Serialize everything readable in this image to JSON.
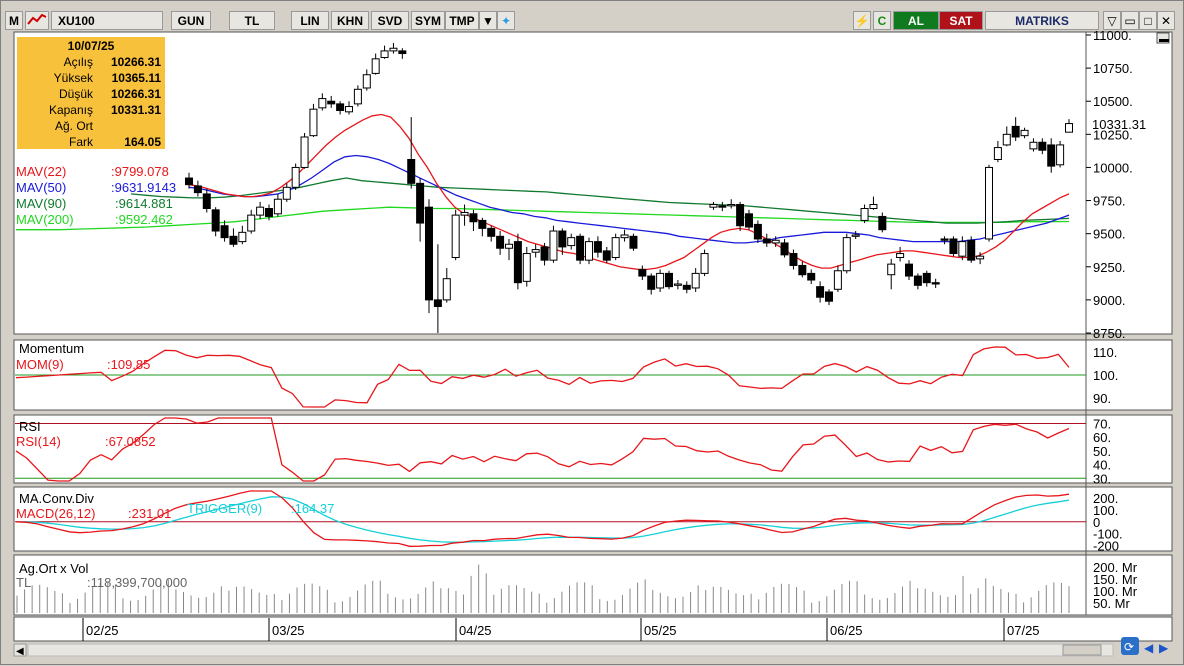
{
  "toolbar": {
    "logo": "M",
    "symbol": "XU100",
    "buttons": [
      "GUN",
      "TL",
      "LIN",
      "KHN",
      "SVD",
      "SYM",
      "TMP"
    ],
    "al_label": "AL",
    "sat_label": "SAT",
    "brand": "MATRIKS"
  },
  "info": {
    "date": "10/07/25",
    "rows": [
      {
        "k": "Açılış",
        "v": "10266.31"
      },
      {
        "k": "Yüksek",
        "v": "10365.11"
      },
      {
        "k": "Düşük",
        "v": "10266.31"
      },
      {
        "k": "Kapanış",
        "v": "10331.31"
      },
      {
        "k": "Ağ. Ort",
        "v": ""
      },
      {
        "k": "Fark",
        "v": "164.05"
      }
    ]
  },
  "indicators_main": [
    {
      "label": "MAV(22)",
      "value": ":9799.078",
      "color": "#e8161b"
    },
    {
      "label": "MAV(50)",
      "value": ":9631.9143",
      "color": "#1a1adb"
    },
    {
      "label": "MAV(90)",
      "value": ":9614.881",
      "color": "#117a2e"
    },
    {
      "label": "MAV(200)",
      "value": ":9592.462",
      "color": "#1fd81f"
    }
  ],
  "last_price_label": "10331.31",
  "panels": {
    "momentum": {
      "title": "Momentum",
      "label": "MOM(9)",
      "value": ":109.85",
      "ticks": [
        "110.",
        "100.",
        "90."
      ]
    },
    "rsi": {
      "title": "RSI",
      "label": "RSI(14)",
      "value": ":67.0852",
      "ticks": [
        "70.",
        "60.",
        "50.",
        "40.",
        "30."
      ]
    },
    "macd": {
      "title": "MA.Conv.Div",
      "label": "MACD(26,12)",
      "value": ":231.01",
      "trigger_label": "TRIGGER(9)",
      "trigger_value": ":164.37",
      "ticks": [
        "200.",
        "100.",
        "0",
        "-100.",
        "-200"
      ]
    },
    "volume": {
      "title": "Ag.Ort x Vol",
      "label": "TL",
      "value": ":118,399,700,000",
      "ticks": [
        "200. Mr",
        "150. Mr",
        "100. Mr",
        "50. Mr"
      ]
    }
  },
  "price_ticks": [
    "11000.",
    "10750.",
    "10500.",
    "10250.",
    "10000.",
    "9750.",
    "9500.",
    "9250.",
    "9000.",
    "8750."
  ],
  "x_labels": [
    "02/25",
    "03/25",
    "04/25",
    "05/25",
    "06/25",
    "07/25"
  ],
  "chart_data": {
    "type": "candlestick",
    "ylim": [
      8750,
      11000
    ],
    "last_close": 10331.31,
    "candles": [
      [
        9920,
        9870,
        9960,
        9840
      ],
      [
        9860,
        9810,
        9900,
        9780
      ],
      [
        9800,
        9690,
        9840,
        9660
      ],
      [
        9680,
        9520,
        9700,
        9480
      ],
      [
        9560,
        9470,
        9600,
        9440
      ],
      [
        9480,
        9420,
        9540,
        9400
      ],
      [
        9440,
        9510,
        9560,
        9420
      ],
      [
        9520,
        9640,
        9680,
        9500
      ],
      [
        9640,
        9700,
        9740,
        9610
      ],
      [
        9690,
        9630,
        9720,
        9600
      ],
      [
        9650,
        9760,
        9800,
        9630
      ],
      [
        9760,
        9850,
        9880,
        9740
      ],
      [
        9850,
        10000,
        10030,
        9830
      ],
      [
        10000,
        10230,
        10260,
        9990
      ],
      [
        10240,
        10440,
        10480,
        10230
      ],
      [
        10450,
        10520,
        10560,
        10430
      ],
      [
        10500,
        10480,
        10540,
        10450
      ],
      [
        10480,
        10430,
        10500,
        10400
      ],
      [
        10420,
        10460,
        10500,
        10400
      ],
      [
        10480,
        10590,
        10620,
        10460
      ],
      [
        10600,
        10700,
        10740,
        10580
      ],
      [
        10710,
        10820,
        10860,
        10700
      ],
      [
        10830,
        10880,
        10920,
        10820
      ],
      [
        10880,
        10900,
        10940,
        10860
      ],
      [
        10880,
        10860,
        10900,
        10820
      ],
      [
        10060,
        9880,
        10380,
        9840
      ],
      [
        9880,
        9580,
        9920,
        9440
      ],
      [
        9700,
        9000,
        9760,
        8900
      ],
      [
        9000,
        8950,
        9420,
        8750
      ],
      [
        9000,
        9160,
        9240,
        8980
      ],
      [
        9320,
        9640,
        9680,
        9300
      ],
      [
        9640,
        9660,
        9720,
        9560
      ],
      [
        9650,
        9590,
        9680,
        9520
      ],
      [
        9600,
        9540,
        9620,
        9480
      ],
      [
        9540,
        9480,
        9560,
        9440
      ],
      [
        9480,
        9390,
        9520,
        9340
      ],
      [
        9390,
        9420,
        9460,
        9300
      ],
      [
        9440,
        9130,
        9500,
        9080
      ],
      [
        9140,
        9350,
        9400,
        9100
      ],
      [
        9360,
        9380,
        9420,
        9320
      ],
      [
        9400,
        9300,
        9430,
        9260
      ],
      [
        9300,
        9520,
        9560,
        9280
      ],
      [
        9520,
        9400,
        9540,
        9340
      ],
      [
        9410,
        9470,
        9500,
        9380
      ],
      [
        9480,
        9300,
        9500,
        9270
      ],
      [
        9300,
        9440,
        9470,
        9270
      ],
      [
        9440,
        9360,
        9480,
        9320
      ],
      [
        9370,
        9300,
        9400,
        9280
      ],
      [
        9320,
        9470,
        9500,
        9300
      ],
      [
        9470,
        9490,
        9530,
        9440
      ],
      [
        9480,
        9390,
        9500,
        9370
      ],
      [
        9230,
        9180,
        9260,
        9150
      ],
      [
        9180,
        9080,
        9200,
        9040
      ],
      [
        9090,
        9200,
        9230,
        9060
      ],
      [
        9200,
        9100,
        9220,
        9080
      ],
      [
        9110,
        9120,
        9150,
        9080
      ],
      [
        9110,
        9080,
        9140,
        9050
      ],
      [
        9090,
        9200,
        9240,
        9060
      ],
      [
        9200,
        9350,
        9380,
        9180
      ],
      [
        9700,
        9720,
        9740,
        9680
      ],
      [
        9710,
        9700,
        9740,
        9670
      ],
      [
        9710,
        9720,
        9760,
        9690
      ],
      [
        9720,
        9560,
        9740,
        9520
      ],
      [
        9650,
        9550,
        9680,
        9530
      ],
      [
        9570,
        9460,
        9600,
        9430
      ],
      [
        9460,
        9430,
        9500,
        9400
      ],
      [
        9430,
        9450,
        9480,
        9400
      ],
      [
        9430,
        9340,
        9460,
        9320
      ],
      [
        9350,
        9260,
        9380,
        9230
      ],
      [
        9260,
        9190,
        9290,
        9170
      ],
      [
        9200,
        9150,
        9230,
        9120
      ],
      [
        9100,
        9020,
        9140,
        8980
      ],
      [
        9060,
        8990,
        9080,
        8960
      ],
      [
        9080,
        9220,
        9260,
        9060
      ],
      [
        9220,
        9470,
        9500,
        9200
      ],
      [
        9480,
        9490,
        9520,
        9460
      ],
      [
        9600,
        9690,
        9720,
        9580
      ],
      [
        9690,
        9720,
        9780,
        9680
      ],
      [
        9630,
        9530,
        9660,
        9510
      ],
      [
        9190,
        9270,
        9310,
        9080
      ],
      [
        9320,
        9350,
        9400,
        9290
      ],
      [
        9270,
        9180,
        9300,
        9150
      ],
      [
        9180,
        9110,
        9200,
        9080
      ],
      [
        9200,
        9130,
        9220,
        9100
      ],
      [
        9130,
        9120,
        9160,
        9090
      ],
      [
        9460,
        9450,
        9480,
        9420
      ],
      [
        9460,
        9350,
        9480,
        9330
      ],
      [
        9330,
        9440,
        9480,
        9300
      ],
      [
        9450,
        9300,
        9480,
        9280
      ],
      [
        9310,
        9330,
        9360,
        9270
      ],
      [
        9460,
        10000,
        10020,
        9440
      ],
      [
        10060,
        10150,
        10200,
        10040
      ],
      [
        10170,
        10250,
        10310,
        10160
      ],
      [
        10310,
        10230,
        10380,
        10200
      ],
      [
        10240,
        10280,
        10300,
        10220
      ],
      [
        10140,
        10190,
        10220,
        10120
      ],
      [
        10190,
        10130,
        10220,
        10100
      ],
      [
        10170,
        10010,
        10220,
        9960
      ],
      [
        10020,
        10170,
        10200,
        10000
      ],
      [
        10266.31,
        10331.31,
        10365.11,
        10266.31
      ]
    ],
    "mav22": [
      9870,
      9860,
      9840,
      9820,
      9800,
      9790,
      9780,
      9780,
      9790,
      9810,
      9850,
      9900,
      9960,
      10030,
      10100,
      10170,
      10230,
      10280,
      10320,
      10360,
      10390,
      10400,
      10380,
      10310,
      10220,
      10100,
      10000,
      9880,
      9780,
      9700,
      9650,
      9620,
      9590,
      9560,
      9530,
      9500,
      9470,
      9440,
      9420,
      9400,
      9380,
      9360,
      9350,
      9330,
      9310,
      9290,
      9270,
      9250,
      9240,
      9230,
      9230,
      9240,
      9260,
      9290,
      9320,
      9370,
      9420,
      9470,
      9510,
      9530,
      9540,
      9530,
      9500,
      9460,
      9420,
      9380,
      9330,
      9290,
      9260,
      9240,
      9240,
      9260,
      9280,
      9300,
      9320,
      9340,
      9350,
      9360,
      9370,
      9370,
      9360,
      9350,
      9340,
      9330,
      9320,
      9320,
      9330,
      9360,
      9400,
      9450,
      9520,
      9590,
      9650,
      9690,
      9730,
      9770,
      9800
    ],
    "mav50": [
      9850,
      9840,
      9820,
      9800,
      9790,
      9780,
      9780,
      9790,
      9800,
      9830,
      9870,
      9920,
      9980,
      10040,
      10080,
      10090,
      10080,
      10060,
      10030,
      9990,
      9950,
      9910,
      9870,
      9830,
      9790,
      9760,
      9730,
      9700,
      9680,
      9660,
      9650,
      9630,
      9620,
      9600,
      9590,
      9580,
      9570,
      9560,
      9550,
      9540,
      9530,
      9520,
      9510,
      9500,
      9480,
      9470,
      9460,
      9450,
      9440,
      9430,
      9430,
      9440,
      9450,
      9470,
      9480,
      9490,
      9500,
      9510,
      9510,
      9510,
      9500,
      9490,
      9470,
      9460,
      9450,
      9440,
      9440,
      9440,
      9440,
      9440,
      9450,
      9460,
      9480,
      9500,
      9520,
      9540,
      9560,
      9580,
      9610,
      9640
    ],
    "mav90": [
      9800,
      9790,
      9780,
      9775,
      9770,
      9770,
      9775,
      9785,
      9800,
      9815,
      9830,
      9850,
      9875,
      9900,
      9920,
      9900,
      9890,
      9880,
      9870,
      9860,
      9850,
      9845,
      9840,
      9835,
      9830,
      9825,
      9820,
      9815,
      9805,
      9795,
      9785,
      9775,
      9765,
      9755,
      9745,
      9735,
      9730,
      9725,
      9720,
      9715,
      9710,
      9700,
      9690,
      9680,
      9670,
      9660,
      9650,
      9640,
      9630,
      9620,
      9610,
      9600,
      9590,
      9580,
      9580,
      9580,
      9585,
      9590,
      9600,
      9605,
      9610,
      9615
    ],
    "mav200": [
      9530,
      9530,
      9530,
      9535,
      9540,
      9545,
      9550,
      9560,
      9570,
      9580,
      9590,
      9610,
      9630,
      9650,
      9670,
      9680,
      9690,
      9700,
      9695,
      9690,
      9690,
      9685,
      9680,
      9675,
      9670,
      9665,
      9660,
      9655,
      9650,
      9645,
      9640,
      9635,
      9630,
      9625,
      9620,
      9615,
      9610,
      9605,
      9600,
      9595,
      9590,
      9585,
      9585,
      9585,
      9585,
      9585,
      9590,
      9590,
      9592
    ]
  }
}
